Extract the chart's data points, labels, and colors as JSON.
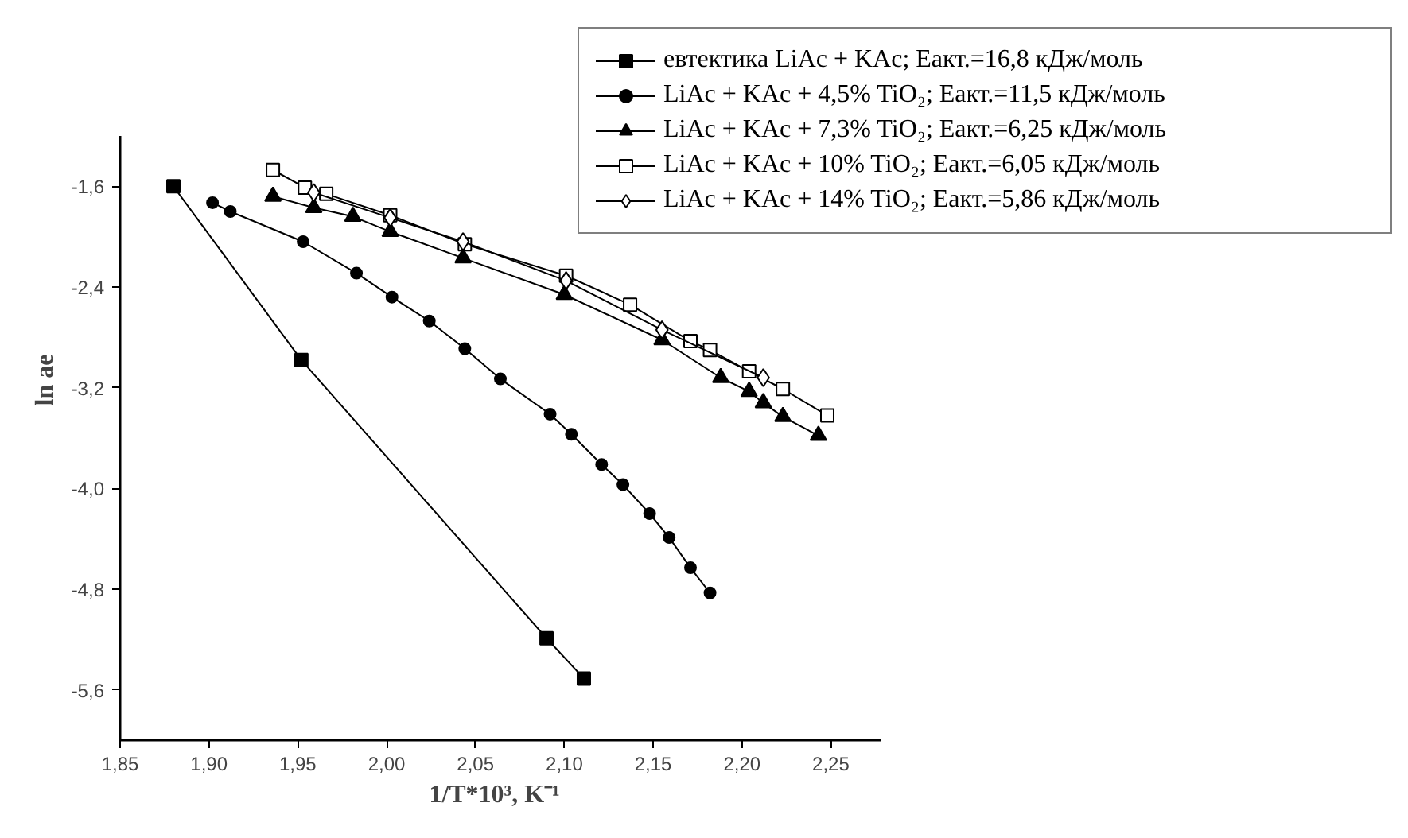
{
  "chart_data": {
    "type": "line",
    "xlabel": "1/T*10³, K⁻¹",
    "ylabel": "ln ae",
    "xlim": [
      1.85,
      2.278
    ],
    "ylim": [
      -6.0,
      -1.2
    ],
    "xticks": [
      {
        "value": 1.85,
        "label": "1,85"
      },
      {
        "value": 1.9,
        "label": "1,90"
      },
      {
        "value": 1.95,
        "label": "1,95"
      },
      {
        "value": 2.0,
        "label": "2,00"
      },
      {
        "value": 2.05,
        "label": "2,05"
      },
      {
        "value": 2.1,
        "label": "2,10"
      },
      {
        "value": 2.15,
        "label": "2,15"
      },
      {
        "value": 2.2,
        "label": "2,20"
      },
      {
        "value": 2.25,
        "label": "2,25"
      }
    ],
    "yticks": [
      {
        "value": -1.6,
        "label": "-1,6"
      },
      {
        "value": -2.4,
        "label": "-2,4"
      },
      {
        "value": -3.2,
        "label": "-3,2"
      },
      {
        "value": -4.0,
        "label": "-4,0"
      },
      {
        "value": -4.8,
        "label": "-4,8"
      },
      {
        "value": -5.6,
        "label": "-5,6"
      }
    ],
    "grid": false,
    "legend": "top right",
    "line_style": "solid",
    "series": [
      {
        "name": "евтектика LiAc + KAc; Eакт.=16,8 кДж/моль",
        "color": "#000000",
        "marker": "square",
        "x": [
          1.88,
          1.952,
          2.09,
          2.111
        ],
        "values": [
          -1.6,
          -2.98,
          -5.19,
          -5.51
        ]
      },
      {
        "name": "LiAc + KAc + 4,5% TiO₂; Eакт.=11,5 кДж/моль",
        "color": "#000000",
        "marker": "circle",
        "x": [
          1.902,
          1.912,
          1.953,
          1.983,
          2.003,
          2.024,
          2.044,
          2.064,
          2.092,
          2.104,
          2.121,
          2.133,
          2.148,
          2.159,
          2.171,
          2.182
        ],
        "values": [
          -1.73,
          -1.8,
          -2.04,
          -2.29,
          -2.48,
          -2.67,
          -2.89,
          -3.13,
          -3.41,
          -3.57,
          -3.81,
          -3.97,
          -4.2,
          -4.39,
          -4.63,
          -4.83
        ]
      },
      {
        "name": "LiAc + KAc + 7,3% TiO₂; Eакт.=6,25 кДж/моль",
        "color": "#000000",
        "marker": "triangle",
        "x": [
          1.936,
          1.959,
          1.981,
          2.002,
          2.043,
          2.1,
          2.155,
          2.188,
          2.204,
          2.212,
          2.223,
          2.243
        ],
        "values": [
          -1.68,
          -1.77,
          -1.84,
          -1.96,
          -2.17,
          -2.46,
          -2.82,
          -3.12,
          -3.23,
          -3.32,
          -3.43,
          -3.58
        ]
      },
      {
        "name": "LiAc + KAc + 10% TiO₂; Eакт.=6,05 кДж/моль",
        "color": "#ffffff",
        "marker": "square",
        "x": [
          1.936,
          1.954,
          1.966,
          2.002,
          2.044,
          2.101,
          2.137,
          2.171,
          2.182,
          2.204,
          2.223,
          2.248
        ],
        "values": [
          -1.47,
          -1.61,
          -1.66,
          -1.83,
          -2.06,
          -2.31,
          -2.54,
          -2.83,
          -2.9,
          -3.07,
          -3.21,
          -3.42
        ]
      },
      {
        "name": "LiAc + KAc + 14% TiO₂; Eакт.=5,86 кДж/моль",
        "color": "#ffffff",
        "marker": "diamond",
        "x": [
          1.959,
          2.002,
          2.043,
          2.101,
          2.155,
          2.212
        ],
        "values": [
          -1.65,
          -1.85,
          -2.04,
          -2.35,
          -2.74,
          -3.12
        ]
      }
    ]
  }
}
